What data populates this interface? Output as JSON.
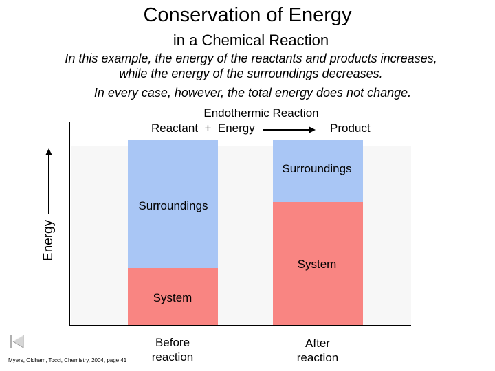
{
  "header": {
    "title": "Conservation of Energy",
    "subtitle": "in a Chemical Reaction",
    "description_line1": "In this example, the energy of the reactants and products increases,",
    "description_line2": "while the energy of the surroundings decreases.",
    "note": "In every case, however, the total energy does not change."
  },
  "reaction": {
    "title": "Endothermic Reaction",
    "left": "Reactant  +  Energy",
    "right": "Product"
  },
  "axis": {
    "y_label": "Energy"
  },
  "bars": [
    {
      "label_line1": "Before",
      "label_line2": "reaction",
      "surroundings_label": "Surroundings",
      "system_label": "System"
    },
    {
      "label_line1": "After",
      "label_line2": "reaction",
      "surroundings_label": "Surroundings",
      "system_label": "System"
    }
  ],
  "citation": {
    "before": "Myers, Oldham, Tocci, ",
    "title": "Chemistry",
    "after": ", 2004, page 41"
  },
  "colors": {
    "surroundings": "#a9c6f5",
    "system": "#f98582",
    "plot_background": "#f7f7f7"
  },
  "icons": {
    "nav": "first-slide-icon"
  }
}
